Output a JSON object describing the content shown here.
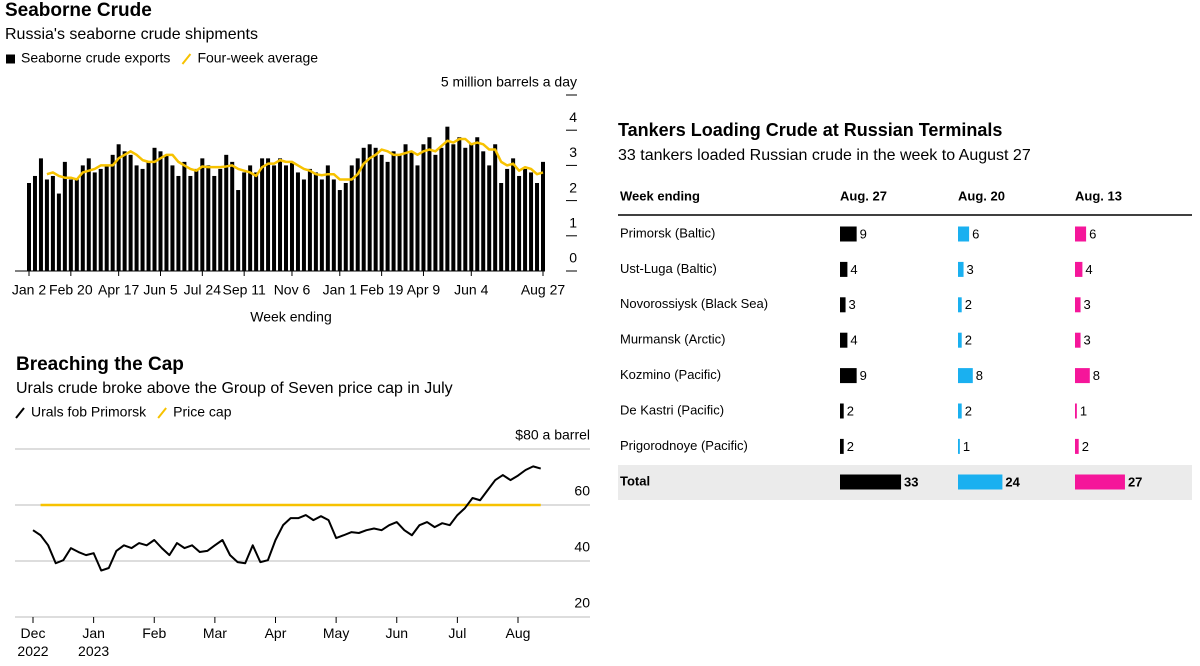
{
  "chart_data": [
    {
      "type": "bar",
      "title": "Seaborne Crude",
      "subtitle": "Russia's seaborne crude shipments",
      "x_label": "Week ending",
      "categories": [
        "Jan 2",
        null,
        null,
        null,
        null,
        null,
        null,
        "Feb 20",
        null,
        null,
        null,
        null,
        null,
        null,
        null,
        "Apr 17",
        null,
        null,
        null,
        null,
        null,
        null,
        "Jun 5",
        null,
        null,
        null,
        null,
        null,
        null,
        "Jul 24",
        null,
        null,
        null,
        null,
        null,
        null,
        "Sep 11",
        null,
        null,
        null,
        null,
        null,
        null,
        null,
        "Nov 6",
        null,
        null,
        null,
        null,
        null,
        null,
        null,
        "Jan 1",
        null,
        null,
        null,
        null,
        null,
        null,
        "Feb 19",
        null,
        null,
        null,
        null,
        null,
        null,
        "Apr 9",
        null,
        null,
        null,
        null,
        null,
        null,
        null,
        "Jun 4",
        null,
        null,
        null,
        null,
        null,
        null,
        null,
        null,
        null,
        null,
        null,
        "Aug 27"
      ],
      "series": [
        {
          "name": "Seaborne crude exports",
          "type": "bar",
          "color": "#000000",
          "values": [
            2.5,
            2.7,
            3.2,
            2.6,
            2.7,
            2.2,
            3.1,
            2.6,
            2.6,
            3.0,
            3.2,
            2.8,
            2.9,
            3.0,
            3.3,
            3.6,
            3.4,
            3.3,
            3.0,
            2.9,
            3.1,
            3.5,
            3.4,
            3.3,
            3.0,
            2.7,
            3.1,
            2.7,
            2.9,
            3.2,
            3.0,
            2.7,
            2.9,
            3.3,
            3.1,
            2.3,
            2.8,
            3.0,
            2.8,
            3.2,
            3.2,
            3.0,
            3.2,
            3.0,
            3.1,
            2.8,
            2.6,
            2.9,
            2.8,
            2.6,
            3.0,
            2.6,
            2.3,
            2.5,
            3.0,
            3.2,
            3.5,
            3.6,
            3.5,
            3.3,
            3.1,
            3.4,
            3.3,
            3.6,
            3.4,
            3.0,
            3.6,
            3.8,
            3.3,
            3.5,
            4.1,
            3.6,
            3.8,
            3.5,
            3.6,
            3.8,
            3.4,
            3.0,
            3.6,
            2.5,
            2.9,
            3.2,
            2.7,
            2.9,
            2.8,
            2.5,
            3.1
          ]
        },
        {
          "name": "Four-week average",
          "type": "line",
          "color": "#f7c200",
          "values": [
            null,
            null,
            null,
            2.75,
            2.8,
            2.7,
            2.65,
            2.65,
            2.6,
            2.8,
            2.85,
            2.9,
            3.0,
            3.0,
            3.0,
            3.2,
            3.3,
            3.4,
            3.3,
            3.15,
            3.1,
            3.1,
            3.2,
            3.3,
            3.3,
            3.1,
            3.0,
            2.9,
            2.85,
            2.97,
            2.95,
            2.95,
            2.95,
            2.97,
            3.0,
            2.9,
            2.85,
            2.8,
            2.7,
            2.95,
            3.05,
            3.05,
            3.15,
            3.1,
            3.1,
            3.0,
            2.9,
            2.85,
            2.75,
            2.72,
            2.75,
            2.75,
            2.6,
            2.6,
            2.6,
            2.75,
            3.05,
            3.2,
            3.3,
            3.45,
            3.4,
            3.3,
            3.3,
            3.35,
            3.4,
            3.3,
            3.4,
            3.45,
            3.4,
            3.55,
            3.7,
            3.65,
            3.75,
            3.75,
            3.6,
            3.65,
            3.6,
            3.45,
            3.45,
            3.1,
            3.0,
            3.05,
            2.85,
            2.95,
            2.9,
            2.75,
            2.8
          ]
        }
      ],
      "ylim": [
        0,
        5
      ],
      "yticks": [
        0,
        1,
        2,
        3,
        4,
        {
          "value": 5,
          "label": "5 million barrels a day"
        }
      ],
      "grid": false
    },
    {
      "type": "line",
      "title": "Breaching the Cap",
      "subtitle": "Urals crude broke above the Group of Seven price cap in July",
      "categories": [
        "Dec 2022",
        null,
        null,
        null,
        null,
        null,
        null,
        null,
        "Jan 2023",
        null,
        null,
        null,
        null,
        null,
        null,
        null,
        "Feb",
        null,
        null,
        null,
        null,
        null,
        null,
        null,
        "Mar",
        null,
        null,
        null,
        null,
        null,
        null,
        null,
        "Apr",
        null,
        null,
        null,
        null,
        null,
        null,
        null,
        "May",
        null,
        null,
        null,
        null,
        null,
        null,
        null,
        "Jun",
        null,
        null,
        null,
        null,
        null,
        null,
        null,
        "Jul",
        null,
        null,
        null,
        null,
        null,
        null,
        null,
        "Aug",
        null,
        null,
        null
      ],
      "series": [
        {
          "name": "Urals fob Primorsk",
          "color": "#000000",
          "values": [
            51.0,
            49.2,
            45.6,
            39.2,
            40.3,
            44.6,
            43.2,
            42.1,
            42.8,
            36.6,
            37.5,
            43.6,
            45.6,
            44.6,
            46.4,
            45.6,
            47.5,
            44.6,
            42.1,
            46.4,
            44.6,
            45.6,
            43.2,
            43.6,
            45.6,
            47.5,
            42.1,
            39.6,
            39.2,
            45.6,
            39.6,
            40.3,
            47.5,
            52.8,
            55.3,
            55.3,
            56.4,
            54.6,
            56.0,
            54.6,
            48.2,
            49.2,
            50.3,
            50.0,
            51.0,
            51.6,
            51.0,
            52.8,
            53.9,
            51.0,
            49.2,
            52.8,
            53.9,
            52.1,
            53.5,
            52.8,
            56.4,
            58.9,
            62.5,
            61.7,
            65.3,
            68.9,
            70.7,
            68.9,
            70.5,
            72.5,
            73.8,
            73.0
          ]
        },
        {
          "name": "Price cap",
          "color": "#f7c200",
          "values": [
            null,
            60,
            60,
            60,
            60,
            60,
            60,
            60,
            60,
            60,
            60,
            60,
            60,
            60,
            60,
            60,
            60,
            60,
            60,
            60,
            60,
            60,
            60,
            60,
            60,
            60,
            60,
            60,
            60,
            60,
            60,
            60,
            60,
            60,
            60,
            60,
            60,
            60,
            60,
            60,
            60,
            60,
            60,
            60,
            60,
            60,
            60,
            60,
            60,
            60,
            60,
            60,
            60,
            60,
            60,
            60,
            60,
            60,
            60,
            60,
            60,
            60,
            60,
            60,
            60,
            60,
            60,
            60
          ]
        }
      ],
      "ylim": [
        20,
        80
      ],
      "yticks": [
        20,
        40,
        60,
        {
          "value": 80,
          "label": "$80 a barrel"
        }
      ],
      "grid": true
    },
    {
      "type": "table",
      "title": "Tankers Loading Crude at Russian Terminals",
      "subtitle": "33 tankers loaded Russian crude in the week to August 27",
      "category_label": "Week ending",
      "total_label": "Total",
      "categories": [
        "Primorsk (Baltic)",
        "Ust-Luga (Baltic)",
        "Novorossiysk (Black Sea)",
        "Murmansk (Arctic)",
        "Kozmino (Pacific)",
        "De Kastri (Pacific)",
        "Prigorodnoye (Pacific)"
      ],
      "series": [
        {
          "name": "Aug. 27",
          "color": "#000000",
          "values": [
            9,
            4,
            3,
            4,
            9,
            2,
            2
          ],
          "total": 33
        },
        {
          "name": "Aug. 20",
          "color": "#1ab0f0",
          "values": [
            6,
            3,
            2,
            2,
            8,
            2,
            1
          ],
          "total": 24
        },
        {
          "name": "Aug. 13",
          "color": "#f5169a",
          "values": [
            6,
            4,
            3,
            3,
            8,
            1,
            2
          ],
          "total": 27
        }
      ]
    }
  ]
}
